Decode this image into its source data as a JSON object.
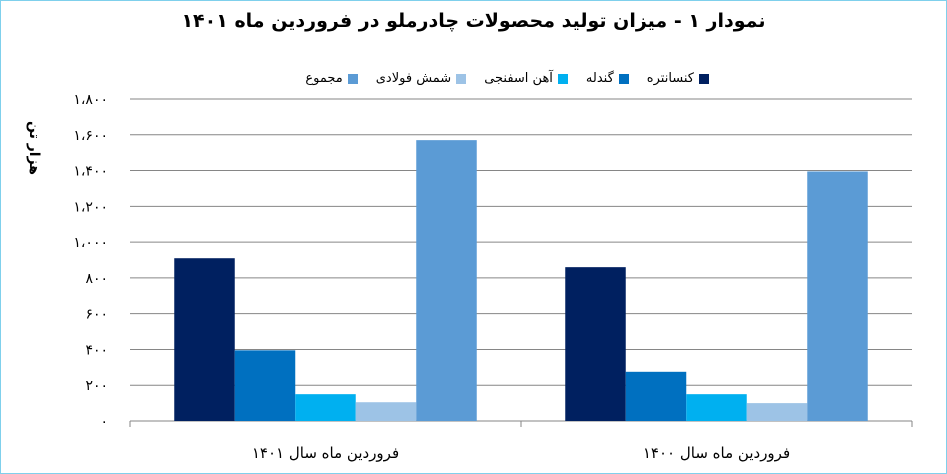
{
  "title": "نمودار ۱ - میزان تولید محصولات چادرملو در فروردین ماه ۱۴۰۱",
  "ylabel": "هزار تن",
  "legend": [
    {
      "name": "کنسانتره",
      "color": "#002060"
    },
    {
      "name": "گندله",
      "color": "#0070c0"
    },
    {
      "name": "آهن اسفنجی",
      "color": "#00b0f0"
    },
    {
      "name": "شمش فولادی",
      "color": "#9dc3e6"
    },
    {
      "name": "مجموع",
      "color": "#5b9bd5"
    }
  ],
  "chart_data": {
    "type": "bar",
    "title": "نمودار ۱ - میزان تولید محصولات چادرملو در فروردین ماه ۱۴۰۱",
    "ylabel": "هزار تن",
    "xlabel": "",
    "ylim": [
      0,
      1800
    ],
    "yticks": [
      0,
      200,
      400,
      600,
      800,
      1000,
      1200,
      1400,
      1600,
      1800
    ],
    "ytick_labels": [
      "۰",
      "۲۰۰",
      "۴۰۰",
      "۶۰۰",
      "۸۰۰",
      "۱،۰۰۰",
      "۱،۲۰۰",
      "۱،۴۰۰",
      "۱،۶۰۰",
      "۱،۸۰۰"
    ],
    "categories": [
      "فروردین ماه سال ۱۴۰۱",
      "فروردین ماه سال ۱۴۰۰"
    ],
    "series": [
      {
        "name": "کنسانتره",
        "color": "#002060",
        "values": [
          910,
          860
        ]
      },
      {
        "name": "گندله",
        "color": "#0070c0",
        "values": [
          395,
          275
        ]
      },
      {
        "name": "آهن اسفنجی",
        "color": "#00b0f0",
        "values": [
          150,
          150
        ]
      },
      {
        "name": "شمش فولادی",
        "color": "#9dc3e6",
        "values": [
          105,
          100
        ]
      },
      {
        "name": "مجموع",
        "color": "#5b9bd5",
        "values": [
          1570,
          1395
        ]
      }
    ],
    "grid": true,
    "legend_position": "top"
  }
}
